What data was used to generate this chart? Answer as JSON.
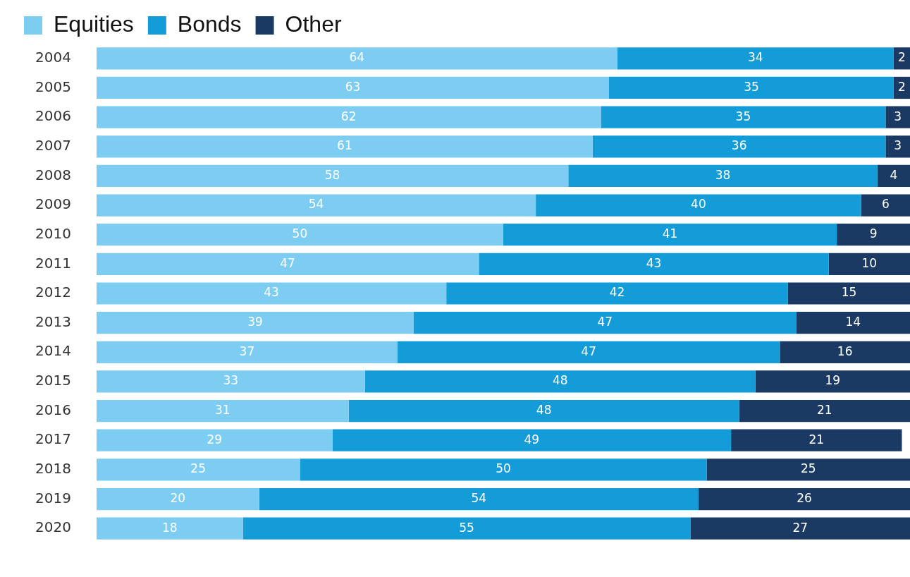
{
  "chart_data": {
    "type": "bar",
    "orientation": "horizontal",
    "stacked": true,
    "data_labels": true,
    "legend": "top left",
    "grid": false,
    "tick_labels": "y",
    "xlim": [
      0,
      100
    ],
    "categories": [
      "2004",
      "2005",
      "2006",
      "2007",
      "2008",
      "2009",
      "2010",
      "2011",
      "2012",
      "2013",
      "2014",
      "2015",
      "2016",
      "2017",
      "2018",
      "2019",
      "2020"
    ],
    "series": [
      {
        "name": "Equities",
        "color": "#7dcdf3",
        "values": [
          64,
          63,
          62,
          61,
          58,
          54,
          50,
          47,
          43,
          39,
          37,
          33,
          31,
          29,
          25,
          20,
          18
        ]
      },
      {
        "name": "Bonds",
        "color": "#149cd8",
        "values": [
          34,
          35,
          35,
          36,
          38,
          40,
          41,
          43,
          42,
          47,
          47,
          48,
          48,
          49,
          50,
          54,
          55
        ]
      },
      {
        "name": "Other",
        "color": "#1a3a63",
        "values": [
          2,
          2,
          3,
          3,
          4,
          6,
          9,
          10,
          15,
          14,
          16,
          19,
          21,
          21,
          25,
          26,
          27
        ]
      }
    ]
  }
}
